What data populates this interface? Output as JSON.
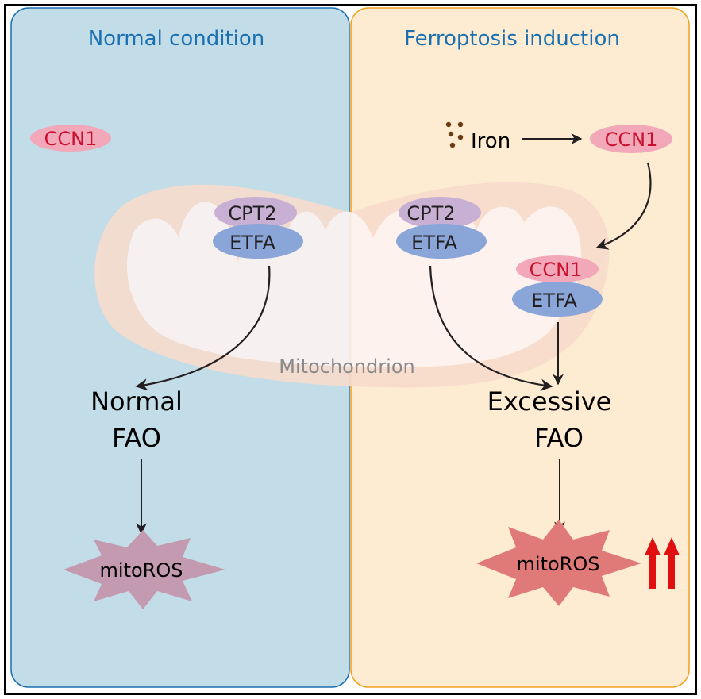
{
  "colors": {
    "normal_panel_fill": "#c3dde8",
    "normal_panel_stroke": "#1a6fb0",
    "ferroptosis_panel_fill": "#fdebd2",
    "ferroptosis_panel_stroke": "#f0a020",
    "title_text": "#1a6fb0",
    "ccn1_fill": "#f2a8b8",
    "ccn1_text": "#c8102e",
    "cpt2_fill": "#c8b0d4",
    "etfa_fill": "#8aa6d8",
    "mito_outer": "#f8dccd",
    "mito_inner": "#fdf3f1",
    "mitoros_normal": "#c49ab0",
    "mitoros_excess": "#e07a78",
    "iron": "#6b3a10",
    "up_arrow": "#e01010"
  },
  "panels": {
    "normal": {
      "title": "Normal condition",
      "ccn1": "CCN1",
      "cpt2": "CPT2",
      "etfa": "ETFA",
      "fao_line1": "Normal",
      "fao_line2": "FAO",
      "ros": "mitoROS"
    },
    "ferroptosis": {
      "title": "Ferroptosis induction",
      "iron": "Iron",
      "ccn1_cyto": "CCN1",
      "cpt2": "CPT2",
      "etfa": "ETFA",
      "ccn1_bound": "CCN1",
      "etfa_bound": "ETFA",
      "fao_line1": "Excessive",
      "fao_line2": "FAO",
      "ros": "mitoROS",
      "ros_change": "increased"
    }
  },
  "mitochondrion_label": "Mitochondrion"
}
